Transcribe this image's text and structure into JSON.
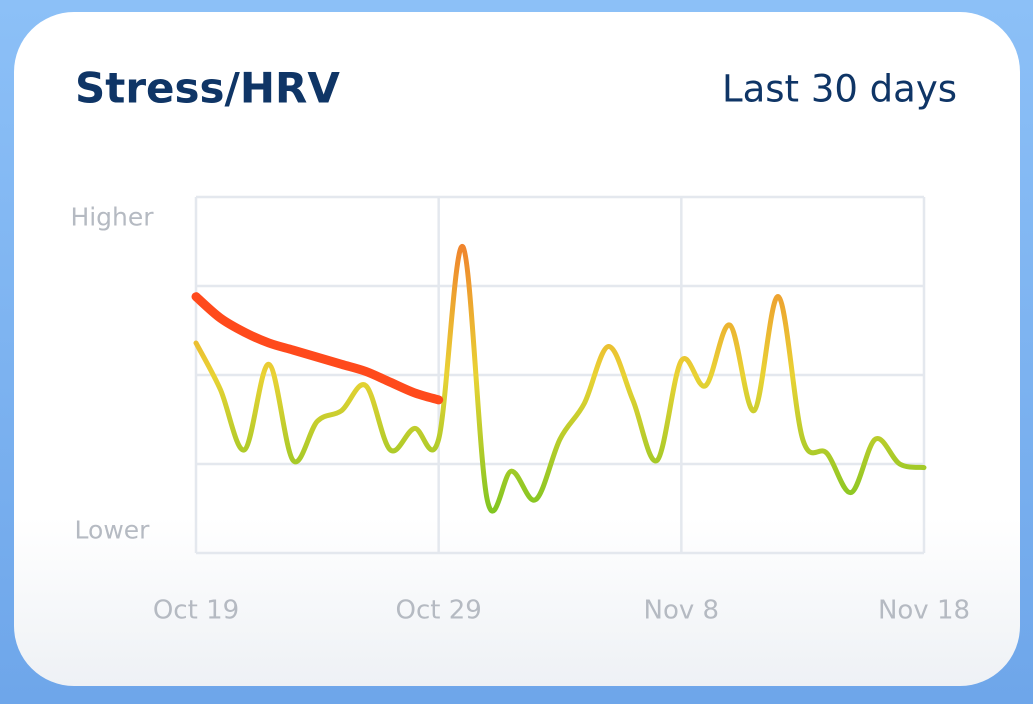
{
  "chart_data": {
    "type": "line",
    "title": "Stress/HRV",
    "subtitle": "Last 30 days",
    "categories": [
      "Oct 19",
      null,
      null,
      null,
      null,
      null,
      null,
      null,
      null,
      null,
      "Oct 29",
      null,
      null,
      null,
      null,
      null,
      null,
      null,
      null,
      null,
      "Nov 8",
      null,
      null,
      null,
      null,
      null,
      null,
      null,
      null,
      null,
      "Nov 18"
    ],
    "ylim": [
      0,
      100
    ],
    "yticks": [
      {
        "value": 94,
        "label": "Higher"
      },
      {
        "value": 6,
        "label": "Lower"
      }
    ],
    "ygrid": [
      0,
      25,
      50,
      75,
      100
    ],
    "grid": true,
    "series": [
      {
        "colors": [
          "#62c21c",
          "#e9d234",
          "#f2672a"
        ],
        "values": [
          59,
          46,
          29,
          53,
          26,
          37,
          40,
          47,
          29,
          35,
          32,
          86,
          15,
          23,
          15,
          32,
          42,
          58,
          43,
          26,
          54,
          47,
          64,
          40,
          72,
          32,
          28,
          17,
          32,
          25,
          24
        ]
      },
      {
        "color": "#ff4a1c",
        "values": [
          72,
          66,
          62,
          59,
          57,
          55,
          53,
          51,
          48,
          45,
          43,
          null,
          null,
          null,
          null,
          null,
          null,
          null,
          null,
          null,
          null,
          null,
          null,
          null,
          null,
          null,
          null,
          null,
          null,
          null,
          null
        ]
      }
    ]
  }
}
